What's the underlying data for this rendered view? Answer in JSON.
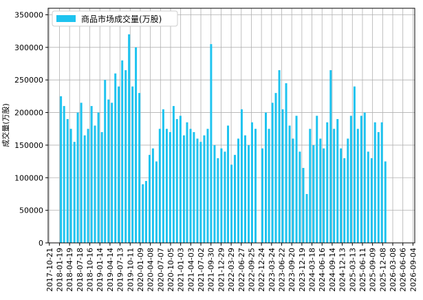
{
  "chart_data": {
    "type": "bar",
    "y_label": "成交量(万股)",
    "series": [
      {
        "name": "商品市场成交量(万股)",
        "color": "#1ec3ef",
        "x": [
          "2018-02-01",
          "2018-03-01",
          "2018-04-01",
          "2018-05-01",
          "2018-06-01",
          "2018-07-01",
          "2018-08-01",
          "2018-09-01",
          "2018-10-01",
          "2018-11-01",
          "2018-12-01",
          "2019-01-01",
          "2019-02-01",
          "2019-03-01",
          "2019-04-01",
          "2019-05-01",
          "2019-06-01",
          "2019-07-01",
          "2019-08-01",
          "2019-09-01",
          "2019-10-01",
          "2019-11-01",
          "2019-12-01",
          "2020-01-01",
          "2020-02-01",
          "2020-03-01",
          "2020-04-01",
          "2020-05-01",
          "2020-06-01",
          "2020-07-01",
          "2020-08-01",
          "2020-09-01",
          "2020-10-01",
          "2020-11-01",
          "2020-12-01",
          "2021-01-01",
          "2021-02-01",
          "2021-03-01",
          "2021-04-01",
          "2021-05-01",
          "2021-06-01",
          "2021-07-01",
          "2021-08-01",
          "2021-09-01",
          "2021-10-01",
          "2021-11-01",
          "2021-12-01",
          "2022-01-01",
          "2022-02-01",
          "2022-03-01",
          "2022-04-01",
          "2022-05-01",
          "2022-06-01",
          "2022-07-01",
          "2022-08-01",
          "2022-09-01",
          "2022-10-01",
          "2022-11-01",
          "2023-01-01",
          "2023-02-01",
          "2023-03-01",
          "2023-04-01",
          "2023-05-01",
          "2023-06-01",
          "2023-07-01",
          "2023-08-01",
          "2023-09-01",
          "2023-10-01",
          "2023-11-01",
          "2023-12-01",
          "2024-01-01",
          "2024-02-01",
          "2024-03-01",
          "2024-04-01",
          "2024-05-01",
          "2024-06-01",
          "2024-07-01",
          "2024-08-01",
          "2024-09-01",
          "2024-10-01",
          "2024-11-01",
          "2024-12-01",
          "2025-01-01",
          "2025-02-01",
          "2025-03-01",
          "2025-04-01",
          "2025-05-01",
          "2025-06-01",
          "2025-07-01",
          "2025-08-01",
          "2025-09-01",
          "2025-10-01",
          "2025-11-01",
          "2025-12-01",
          "2026-01-01"
        ],
        "values": [
          225000,
          210000,
          190000,
          175000,
          155000,
          200000,
          215000,
          165000,
          175000,
          210000,
          180000,
          200000,
          170000,
          250000,
          220000,
          215000,
          260000,
          240000,
          280000,
          265000,
          320000,
          240000,
          300000,
          230000,
          90000,
          95000,
          135000,
          145000,
          125000,
          175000,
          205000,
          175000,
          170000,
          210000,
          190000,
          195000,
          165000,
          185000,
          175000,
          170000,
          160000,
          155000,
          165000,
          175000,
          305000,
          150000,
          130000,
          145000,
          140000,
          180000,
          120000,
          135000,
          160000,
          205000,
          165000,
          150000,
          185000,
          175000,
          145000,
          200000,
          175000,
          215000,
          230000,
          265000,
          205000,
          245000,
          180000,
          160000,
          195000,
          140000,
          115000,
          75000,
          175000,
          150000,
          195000,
          160000,
          145000,
          185000,
          265000,
          175000,
          190000,
          145000,
          130000,
          160000,
          195000,
          240000,
          175000,
          195000,
          200000,
          140000,
          130000,
          185000,
          170000,
          185000,
          125000
        ]
      }
    ],
    "xlim": [
      "2017-10-10",
      "2026-09-20"
    ],
    "xticks": [
      "2017-10-21",
      "2018-01-19",
      "2018-04-19",
      "2018-07-18",
      "2018-10-16",
      "2019-01-14",
      "2019-04-14",
      "2019-07-13",
      "2019-10-11",
      "2020-01-09",
      "2020-04-08",
      "2020-07-07",
      "2020-10-05",
      "2021-01-03",
      "2021-04-03",
      "2021-07-02",
      "2021-09-30",
      "2021-12-29",
      "2022-03-29",
      "2022-06-27",
      "2022-09-25",
      "2022-12-24",
      "2023-03-24",
      "2023-06-22",
      "2023-09-20",
      "2023-12-19",
      "2024-03-18",
      "2024-06-16",
      "2024-09-14",
      "2024-12-13",
      "2025-03-13",
      "2025-06-11",
      "2025-09-09",
      "2025-12-08",
      "2026-03-08",
      "2026-06-06",
      "2026-09-04"
    ],
    "ylim": [
      0,
      360000
    ],
    "yticks": [
      0,
      50000,
      100000,
      150000,
      200000,
      250000,
      300000,
      350000
    ],
    "grid": true,
    "legend": "upper left"
  }
}
